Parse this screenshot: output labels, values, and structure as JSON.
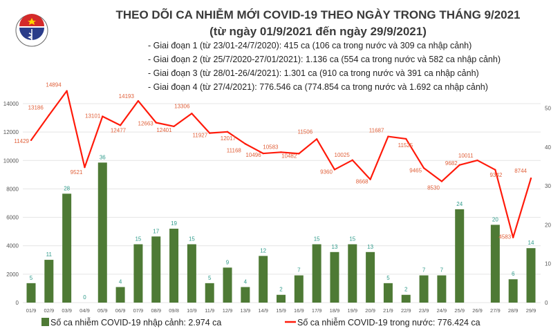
{
  "header": {
    "logo_text_top": "BỘ Y TẾ",
    "logo_text_bottom": "MINISTRY OF HEALTH",
    "title": "THEO DÕI CA NHIỄM MỚI COVID-19 THEO NGÀY TRONG THÁNG 9/2021",
    "subtitle": "(từ ngày 01/9/2021 đến ngày 29/9/2021)",
    "phases": [
      "- Giai đoạn 1 (từ 23/01-24/7/2020): 415 ca (106 ca trong nước và 309 ca nhập cảnh)",
      "- Giai đoạn 2 (từ 25/7/2020-27/01/2021): 1.136 ca (554 ca trong nước và 582 ca nhập cảnh)",
      "- Giai đoạn 3 (từ 28/01-26/4/2021): 1.301 ca (910 ca trong nước và 391 ca nhập cảnh)",
      "- Giai đoạn 4 (từ 27/4/2021): 776.546 ca (774.854 ca trong nước và 1.692 ca nhập cảnh)"
    ]
  },
  "chart_data": {
    "type": "bar+line",
    "categories": [
      "01/9",
      "02/9",
      "03/9",
      "04/9",
      "05/9",
      "06/9",
      "07/9",
      "08/9",
      "09/8",
      "10/9",
      "11/9",
      "12/9",
      "13/9",
      "14/9",
      "15/9",
      "16/9",
      "17/9",
      "18/9",
      "19/9",
      "20/9",
      "21/9",
      "22/9",
      "23/9",
      "24/9",
      "25/9",
      "26/9",
      "27/9",
      "28/9",
      "29/9"
    ],
    "series": [
      {
        "name": "Số ca nhiễm COVID-19 nhập cảnh: 2.974 ca",
        "type": "bar",
        "axis": "right",
        "color": "#4e7a35",
        "values": [
          5,
          11,
          28,
          0,
          36,
          4,
          15,
          17,
          19,
          15,
          5,
          9,
          4,
          12,
          2,
          7,
          15,
          13,
          15,
          13,
          5,
          2,
          7,
          7,
          24,
          null,
          20,
          6,
          14
        ]
      },
      {
        "name": "Số ca nhiễm COVID-19 trong nước: 776.424 ca",
        "type": "line",
        "axis": "left",
        "color": "#ff1a0a",
        "values": [
          11429,
          13186,
          14894,
          9521,
          13101,
          12477,
          14193,
          12663,
          12401,
          13306,
          11927,
          12017,
          11168,
          10496,
          10583,
          10482,
          11506,
          9360,
          10025,
          8668,
          11687,
          11525,
          9465,
          8530,
          9682,
          10011,
          9342,
          4583,
          8744
        ]
      }
    ],
    "left_axis": {
      "ylim": [
        0,
        14000
      ],
      "ticks": [
        "0",
        "2000",
        "4000",
        "6000",
        "8000",
        "10000",
        "12000",
        "14000"
      ]
    },
    "right_axis": {
      "ylim": [
        0,
        50
      ],
      "ticks": [
        "0",
        "10",
        "20",
        "30",
        "40",
        "50"
      ]
    },
    "grid": true,
    "legend": "bottom",
    "bar_label_color": "#2e9a8a",
    "line_label_color": "#e0603a"
  }
}
